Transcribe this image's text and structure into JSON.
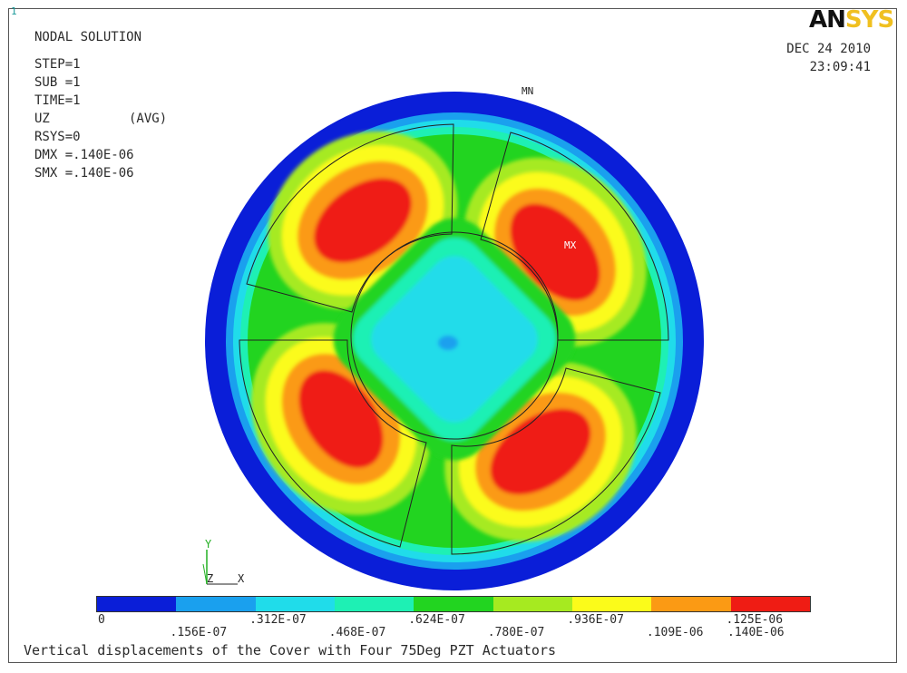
{
  "window_number": "1",
  "logo": {
    "part1": "AN",
    "part2": "SYS"
  },
  "header": {
    "title": "NODAL SOLUTION",
    "step": "STEP=1",
    "sub": "SUB =1",
    "time": "TIME=1",
    "uz": "UZ",
    "avg": "(AVG)",
    "rsys": "RSYS=0",
    "dmx": "DMX =.140E-06",
    "smx": "SMX =.140E-06"
  },
  "date": {
    "day": "DEC 24 2010",
    "time": "23:09:41"
  },
  "markers": {
    "min": "MN",
    "max": "MX"
  },
  "triad": {
    "y": "Y",
    "z": "Z",
    "x": "X"
  },
  "legend": {
    "colors": [
      "#0a1ed8",
      "#1aa0ee",
      "#20dcea",
      "#1ef0b4",
      "#22d420",
      "#a6ea20",
      "#fbfb1a",
      "#fb9a14",
      "#ef1c14"
    ],
    "labels_top_row": [
      "0",
      ".312E-07",
      ".624E-07",
      ".936E-07",
      ".125E-06"
    ],
    "labels_bottom_row": [
      ".156E-07",
      ".468E-07",
      ".780E-07",
      ".109E-06",
      ".140E-06"
    ]
  },
  "caption": "Vertical displacements of the Cover with Four 75Deg PZT Actuators"
}
